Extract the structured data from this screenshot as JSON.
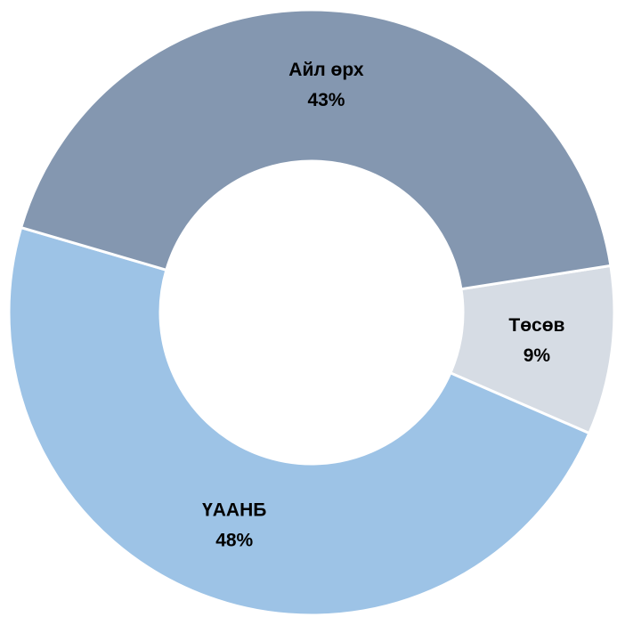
{
  "chart_data": {
    "type": "donut",
    "categories": [
      "Төсөв",
      "ҮААНБ",
      "Айл өрх"
    ],
    "values": [
      9,
      48,
      43
    ],
    "value_labels": [
      "9%",
      "48%",
      "43%"
    ],
    "colors": [
      "#d6dce4",
      "#9dc3e6",
      "#8497b0"
    ]
  }
}
